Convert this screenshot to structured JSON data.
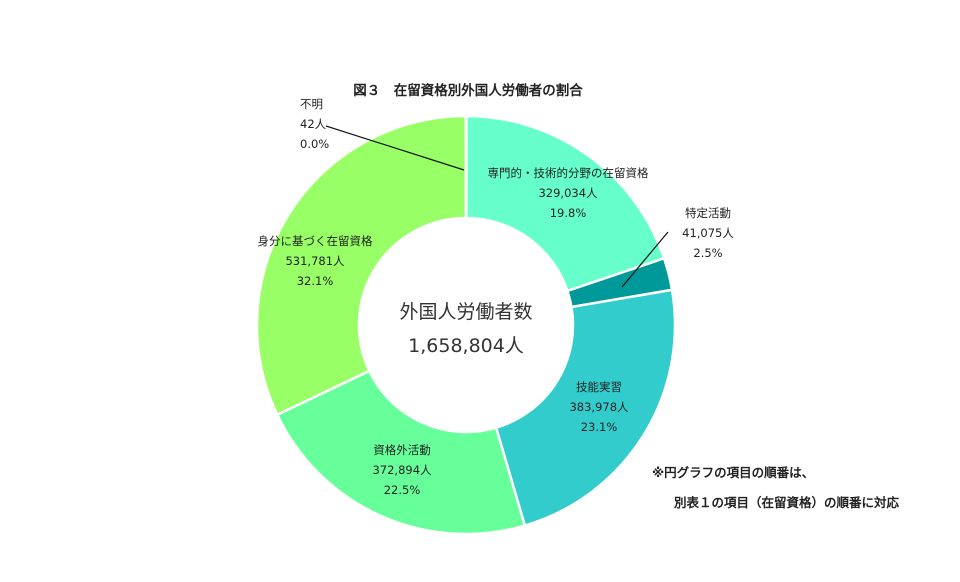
{
  "chart_data": {
    "type": "pie",
    "variant": "donut",
    "title": "図３　在留資格別外国人労働者の割合",
    "center_label": "外国人労働者数",
    "center_total": "1,658,804人",
    "slices": [
      {
        "label": "専門的・技術的分野の在留資格",
        "value": 329034,
        "value_text": "329,034人",
        "percent_text": "19.8%",
        "percent": 19.8,
        "color": "#66ffcc"
      },
      {
        "label": "特定活動",
        "value": 41075,
        "value_text": "41,075人",
        "percent_text": "2.5%",
        "percent": 2.5,
        "color": "#009999"
      },
      {
        "label": "技能実習",
        "value": 383978,
        "value_text": "383,978人",
        "percent_text": "23.1%",
        "percent": 23.1,
        "color": "#33cccc"
      },
      {
        "label": "資格外活動",
        "value": 372894,
        "value_text": "372,894人",
        "percent_text": "22.5%",
        "percent": 22.5,
        "color": "#66ff99"
      },
      {
        "label": "身分に基づく在留資格",
        "value": 531781,
        "value_text": "531,781人",
        "percent_text": "32.1%",
        "percent": 32.1,
        "color": "#99ff66"
      },
      {
        "label": "不明",
        "value": 42,
        "value_text": "42人",
        "percent_text": "0.0%",
        "percent": 0.0,
        "color": "#ccff99"
      }
    ]
  },
  "notes": {
    "line1": "※円グラフの項目の順番は、",
    "line2": "別表１の項目（在留資格）の順番に対応"
  }
}
